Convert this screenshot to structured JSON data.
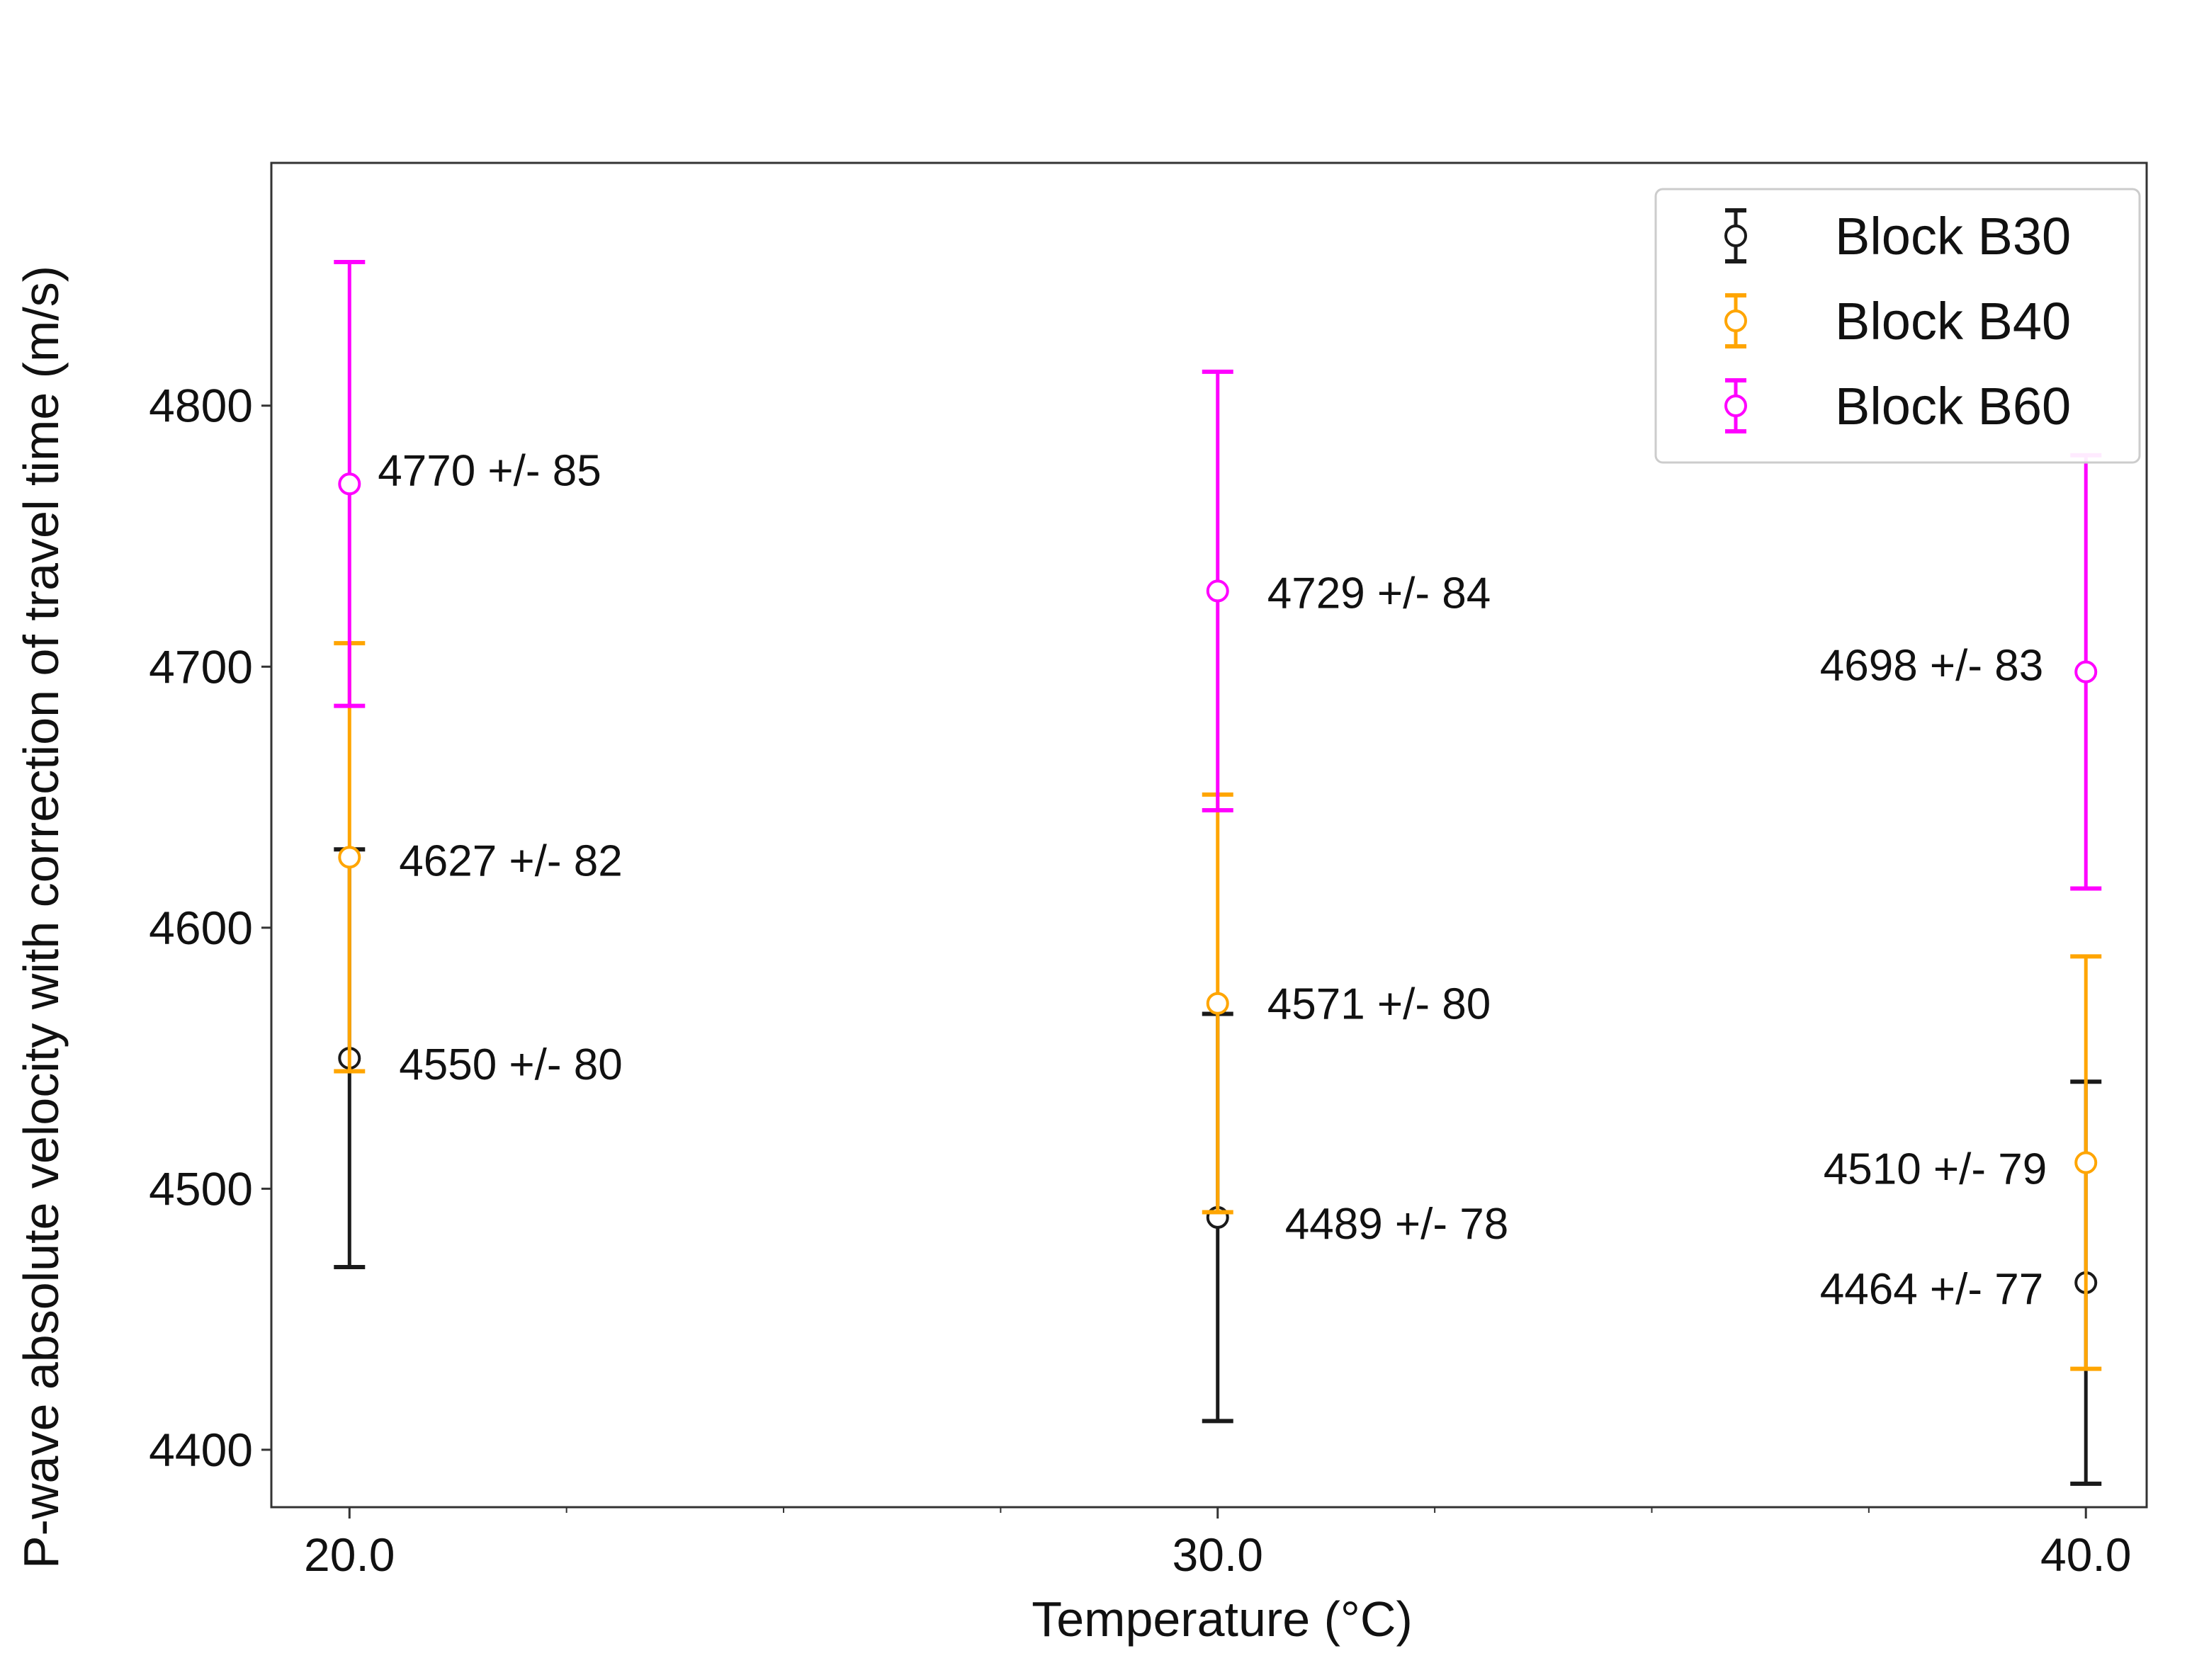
{
  "chart_data": {
    "type": "scatter",
    "title": "",
    "xlabel": "Temperature (°C)",
    "ylabel": "P-wave absolute velocity with correction of travel time (m/s)",
    "x": [
      20.0,
      30.0,
      40.0
    ],
    "x_tick_labels": [
      "20.0",
      "30.0",
      "40.0"
    ],
    "xlim": [
      19.1,
      40.7
    ],
    "ylim": [
      4378,
      4893
    ],
    "y_ticks": [
      4400,
      4500,
      4600,
      4700,
      4800
    ],
    "y_tick_labels": [
      "4400",
      "4500",
      "4600",
      "4700",
      "4800"
    ],
    "grid": false,
    "legend_position": "top-right",
    "series": [
      {
        "name": "Block B30",
        "color": "#1a1a1a",
        "values": [
          4550,
          4489,
          4464
        ],
        "errors": [
          80,
          78,
          77
        ],
        "labels": [
          "4550 +/- 80",
          "4489 +/- 78",
          "4464 +/- 77"
        ]
      },
      {
        "name": "Block B40",
        "color": "#ffa500",
        "values": [
          4627,
          4571,
          4510
        ],
        "errors": [
          82,
          80,
          79
        ],
        "labels": [
          "4627 +/- 82",
          "4571 +/- 80",
          "4510 +/- 79"
        ]
      },
      {
        "name": "Block B60",
        "color": "#ff00ff",
        "values": [
          4770,
          4729,
          4698
        ],
        "errors": [
          85,
          84,
          83
        ],
        "labels": [
          "4770 +/- 85",
          "4729 +/- 84",
          "4698 +/- 83"
        ]
      }
    ]
  }
}
